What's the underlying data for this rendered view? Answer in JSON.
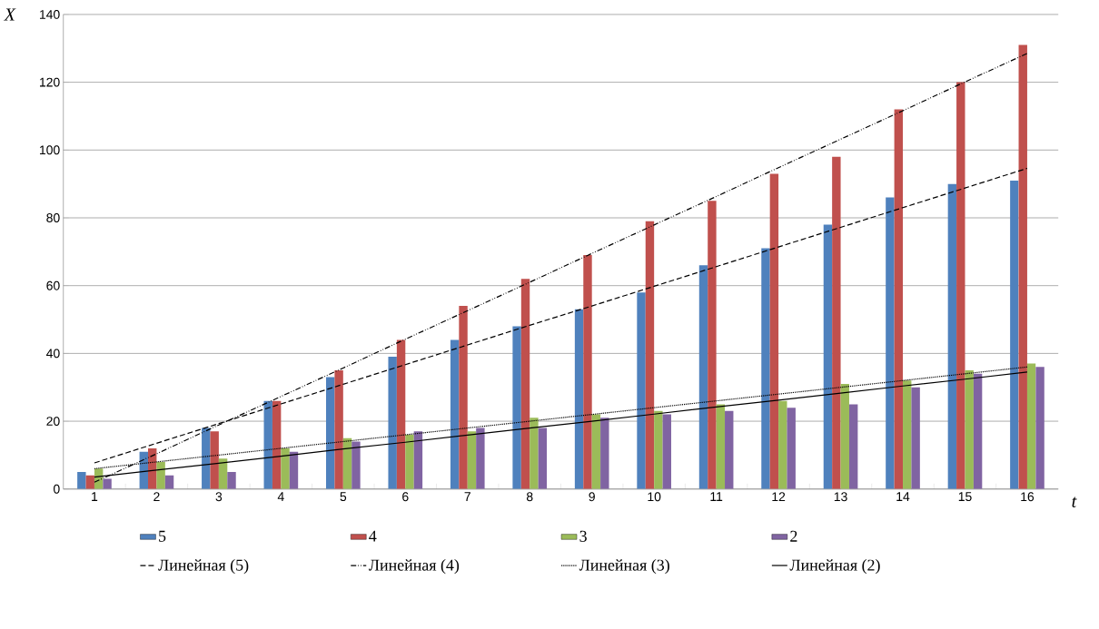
{
  "chart_data": {
    "type": "bar",
    "xlabel": "t",
    "ylabel": "X",
    "x": [
      1,
      2,
      3,
      4,
      5,
      6,
      7,
      8,
      9,
      10,
      11,
      12,
      13,
      14,
      15,
      16
    ],
    "xlim": [
      0.5,
      16.5
    ],
    "xticks": [
      1,
      2,
      3,
      4,
      5,
      6,
      7,
      8,
      9,
      10,
      11,
      12,
      13,
      14,
      15,
      16
    ],
    "ylim": [
      0,
      140
    ],
    "yticks": [
      0,
      20,
      40,
      60,
      80,
      100,
      120,
      140
    ],
    "grid": "y",
    "legend": "bottom",
    "series": [
      {
        "name": "5",
        "color": "#4f81bd",
        "values": [
          5,
          11,
          18,
          26,
          33,
          39,
          44,
          48,
          53,
          58,
          66,
          71,
          78,
          86,
          90,
          91
        ]
      },
      {
        "name": "4",
        "color": "#c0504d",
        "values": [
          4,
          12,
          17,
          26,
          35,
          44,
          54,
          62,
          69,
          79,
          85,
          93,
          98,
          112,
          120,
          131
        ]
      },
      {
        "name": "3",
        "color": "#9bbb59",
        "values": [
          6,
          8,
          9,
          12,
          15,
          16,
          17,
          21,
          22,
          23,
          25,
          26,
          31,
          32,
          35,
          37
        ]
      },
      {
        "name": "2",
        "color": "#8064a2",
        "values": [
          3,
          4,
          5,
          11,
          14,
          17,
          18,
          18,
          21,
          22,
          23,
          24,
          25,
          30,
          34,
          36
        ]
      },
      {
        "name": "Линейная (5)",
        "type": "line",
        "color": "#000000",
        "line_style": "dashed",
        "values": [
          7.7,
          13.5,
          19.3,
          25.1,
          30.9,
          36.7,
          42.5,
          48.3,
          54,
          59.8,
          65.6,
          71.4,
          77.2,
          83,
          88.8,
          94.6
        ]
      },
      {
        "name": "Линейная (4)",
        "type": "line",
        "color": "#000000",
        "line_style": "dashdotdotted",
        "values": [
          2,
          10.4,
          18.9,
          27.3,
          35.7,
          44.2,
          52.6,
          61,
          69.5,
          77.9,
          86.3,
          94.8,
          103.2,
          111.6,
          120.1,
          128.5
        ]
      },
      {
        "name": "Линейная (3)",
        "type": "line",
        "color": "#000000",
        "line_style": "dotted",
        "values": [
          6,
          8,
          10,
          12,
          14,
          16,
          18,
          20,
          22,
          24,
          26,
          28,
          30,
          32,
          34,
          36
        ]
      },
      {
        "name": "Линейная (2)",
        "type": "line",
        "color": "#000000",
        "line_style": "solid",
        "values": [
          3.5,
          5.6,
          7.6,
          9.7,
          11.8,
          13.8,
          15.9,
          18,
          20,
          22.1,
          24.2,
          26.2,
          28.3,
          30.4,
          32.4,
          34.5
        ]
      }
    ]
  }
}
